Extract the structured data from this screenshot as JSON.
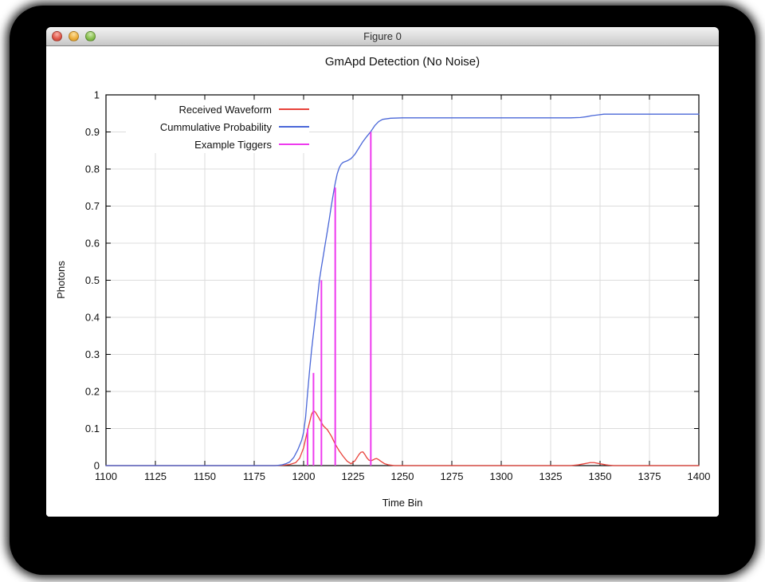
{
  "window": {
    "title": "Figure 0"
  },
  "chart_data": {
    "type": "line",
    "title": "GmApd Detection (No Noise)",
    "xlabel": "Time Bin",
    "ylabel": "Photons",
    "xlim": [
      1100,
      1400
    ],
    "ylim": [
      0,
      1
    ],
    "grid": true,
    "grid_color": "#dcdcdc",
    "frame_color": "#000000",
    "x_tick_values": [
      1100,
      1125,
      1150,
      1175,
      1200,
      1225,
      1250,
      1275,
      1300,
      1325,
      1350,
      1375,
      1400
    ],
    "x_tick_labels": [
      "1100",
      "1125",
      "1150",
      "1175",
      "1200",
      "1225",
      "1250",
      "1275",
      "1300",
      "1325",
      "1350",
      "1375",
      "1400"
    ],
    "y_tick_values": [
      0,
      0.1,
      0.2,
      0.3,
      0.4,
      0.5,
      0.6,
      0.7,
      0.8,
      0.9,
      1
    ],
    "y_tick_labels": [
      "0",
      "0.1",
      "0.2",
      "0.3",
      "0.4",
      "0.5",
      "0.6",
      "0.7",
      "0.8",
      "0.9",
      "1"
    ],
    "legend": {
      "position": "top-left"
    },
    "series": [
      {
        "name": "Received Waveform",
        "type": "line",
        "color": "#e8423a",
        "stroke_width": 1.3,
        "points": [
          [
            1100,
            0
          ],
          [
            1185,
            0
          ],
          [
            1190,
            0.001
          ],
          [
            1193,
            0.003
          ],
          [
            1196,
            0.008
          ],
          [
            1198,
            0.02
          ],
          [
            1200,
            0.048
          ],
          [
            1202,
            0.095
          ],
          [
            1204,
            0.138
          ],
          [
            1205,
            0.148
          ],
          [
            1206,
            0.144
          ],
          [
            1208,
            0.126
          ],
          [
            1210,
            0.107
          ],
          [
            1212,
            0.097
          ],
          [
            1214,
            0.08
          ],
          [
            1216,
            0.058
          ],
          [
            1218,
            0.04
          ],
          [
            1220,
            0.025
          ],
          [
            1222,
            0.012
          ],
          [
            1224,
            0.005
          ],
          [
            1226,
            0.013
          ],
          [
            1228,
            0.03
          ],
          [
            1229,
            0.036
          ],
          [
            1230,
            0.037
          ],
          [
            1231,
            0.03
          ],
          [
            1232,
            0.021
          ],
          [
            1233,
            0.015
          ],
          [
            1234,
            0.013
          ],
          [
            1235,
            0.015
          ],
          [
            1236,
            0.018
          ],
          [
            1237,
            0.019
          ],
          [
            1238,
            0.016
          ],
          [
            1239,
            0.012
          ],
          [
            1241,
            0.005
          ],
          [
            1243,
            0.002
          ],
          [
            1246,
            0
          ],
          [
            1335,
            0
          ],
          [
            1339,
            0.002
          ],
          [
            1342,
            0.005
          ],
          [
            1345,
            0.008
          ],
          [
            1347,
            0.008
          ],
          [
            1350,
            0.005
          ],
          [
            1353,
            0.002
          ],
          [
            1357,
            0
          ],
          [
            1400,
            0
          ]
        ]
      },
      {
        "name": "Cummulative Probability",
        "type": "line",
        "color": "#4a67d8",
        "stroke_width": 1.3,
        "points": [
          [
            1100,
            0
          ],
          [
            1186,
            0
          ],
          [
            1189,
            0.002
          ],
          [
            1191,
            0.005
          ],
          [
            1193,
            0.01
          ],
          [
            1195,
            0.022
          ],
          [
            1197,
            0.042
          ],
          [
            1199,
            0.068
          ],
          [
            1200,
            0.09
          ],
          [
            1201,
            0.13
          ],
          [
            1202,
            0.195
          ],
          [
            1203,
            0.255
          ],
          [
            1204,
            0.31
          ],
          [
            1205,
            0.357
          ],
          [
            1206,
            0.403
          ],
          [
            1207,
            0.452
          ],
          [
            1208,
            0.5
          ],
          [
            1209,
            0.535
          ],
          [
            1210,
            0.567
          ],
          [
            1211,
            0.6
          ],
          [
            1212,
            0.632
          ],
          [
            1213,
            0.665
          ],
          [
            1214,
            0.7
          ],
          [
            1215,
            0.732
          ],
          [
            1216,
            0.762
          ],
          [
            1217,
            0.787
          ],
          [
            1218,
            0.803
          ],
          [
            1219,
            0.813
          ],
          [
            1220,
            0.818
          ],
          [
            1222,
            0.822
          ],
          [
            1224,
            0.828
          ],
          [
            1226,
            0.84
          ],
          [
            1228,
            0.857
          ],
          [
            1230,
            0.874
          ],
          [
            1232,
            0.888
          ],
          [
            1234,
            0.901
          ],
          [
            1236,
            0.917
          ],
          [
            1238,
            0.928
          ],
          [
            1240,
            0.934
          ],
          [
            1244,
            0.937
          ],
          [
            1250,
            0.938
          ],
          [
            1335,
            0.938
          ],
          [
            1340,
            0.939
          ],
          [
            1343,
            0.941
          ],
          [
            1346,
            0.944
          ],
          [
            1349,
            0.946
          ],
          [
            1352,
            0.948
          ],
          [
            1360,
            0.948
          ],
          [
            1400,
            0.948
          ]
        ]
      },
      {
        "name": "Example Tiggers",
        "type": "vlines",
        "color": "#ee3bee",
        "stroke_width": 2,
        "points": [
          [
            1202,
            0.1
          ],
          [
            1205,
            0.25
          ],
          [
            1209,
            0.5
          ],
          [
            1216,
            0.75
          ],
          [
            1234,
            0.9
          ]
        ]
      }
    ]
  }
}
